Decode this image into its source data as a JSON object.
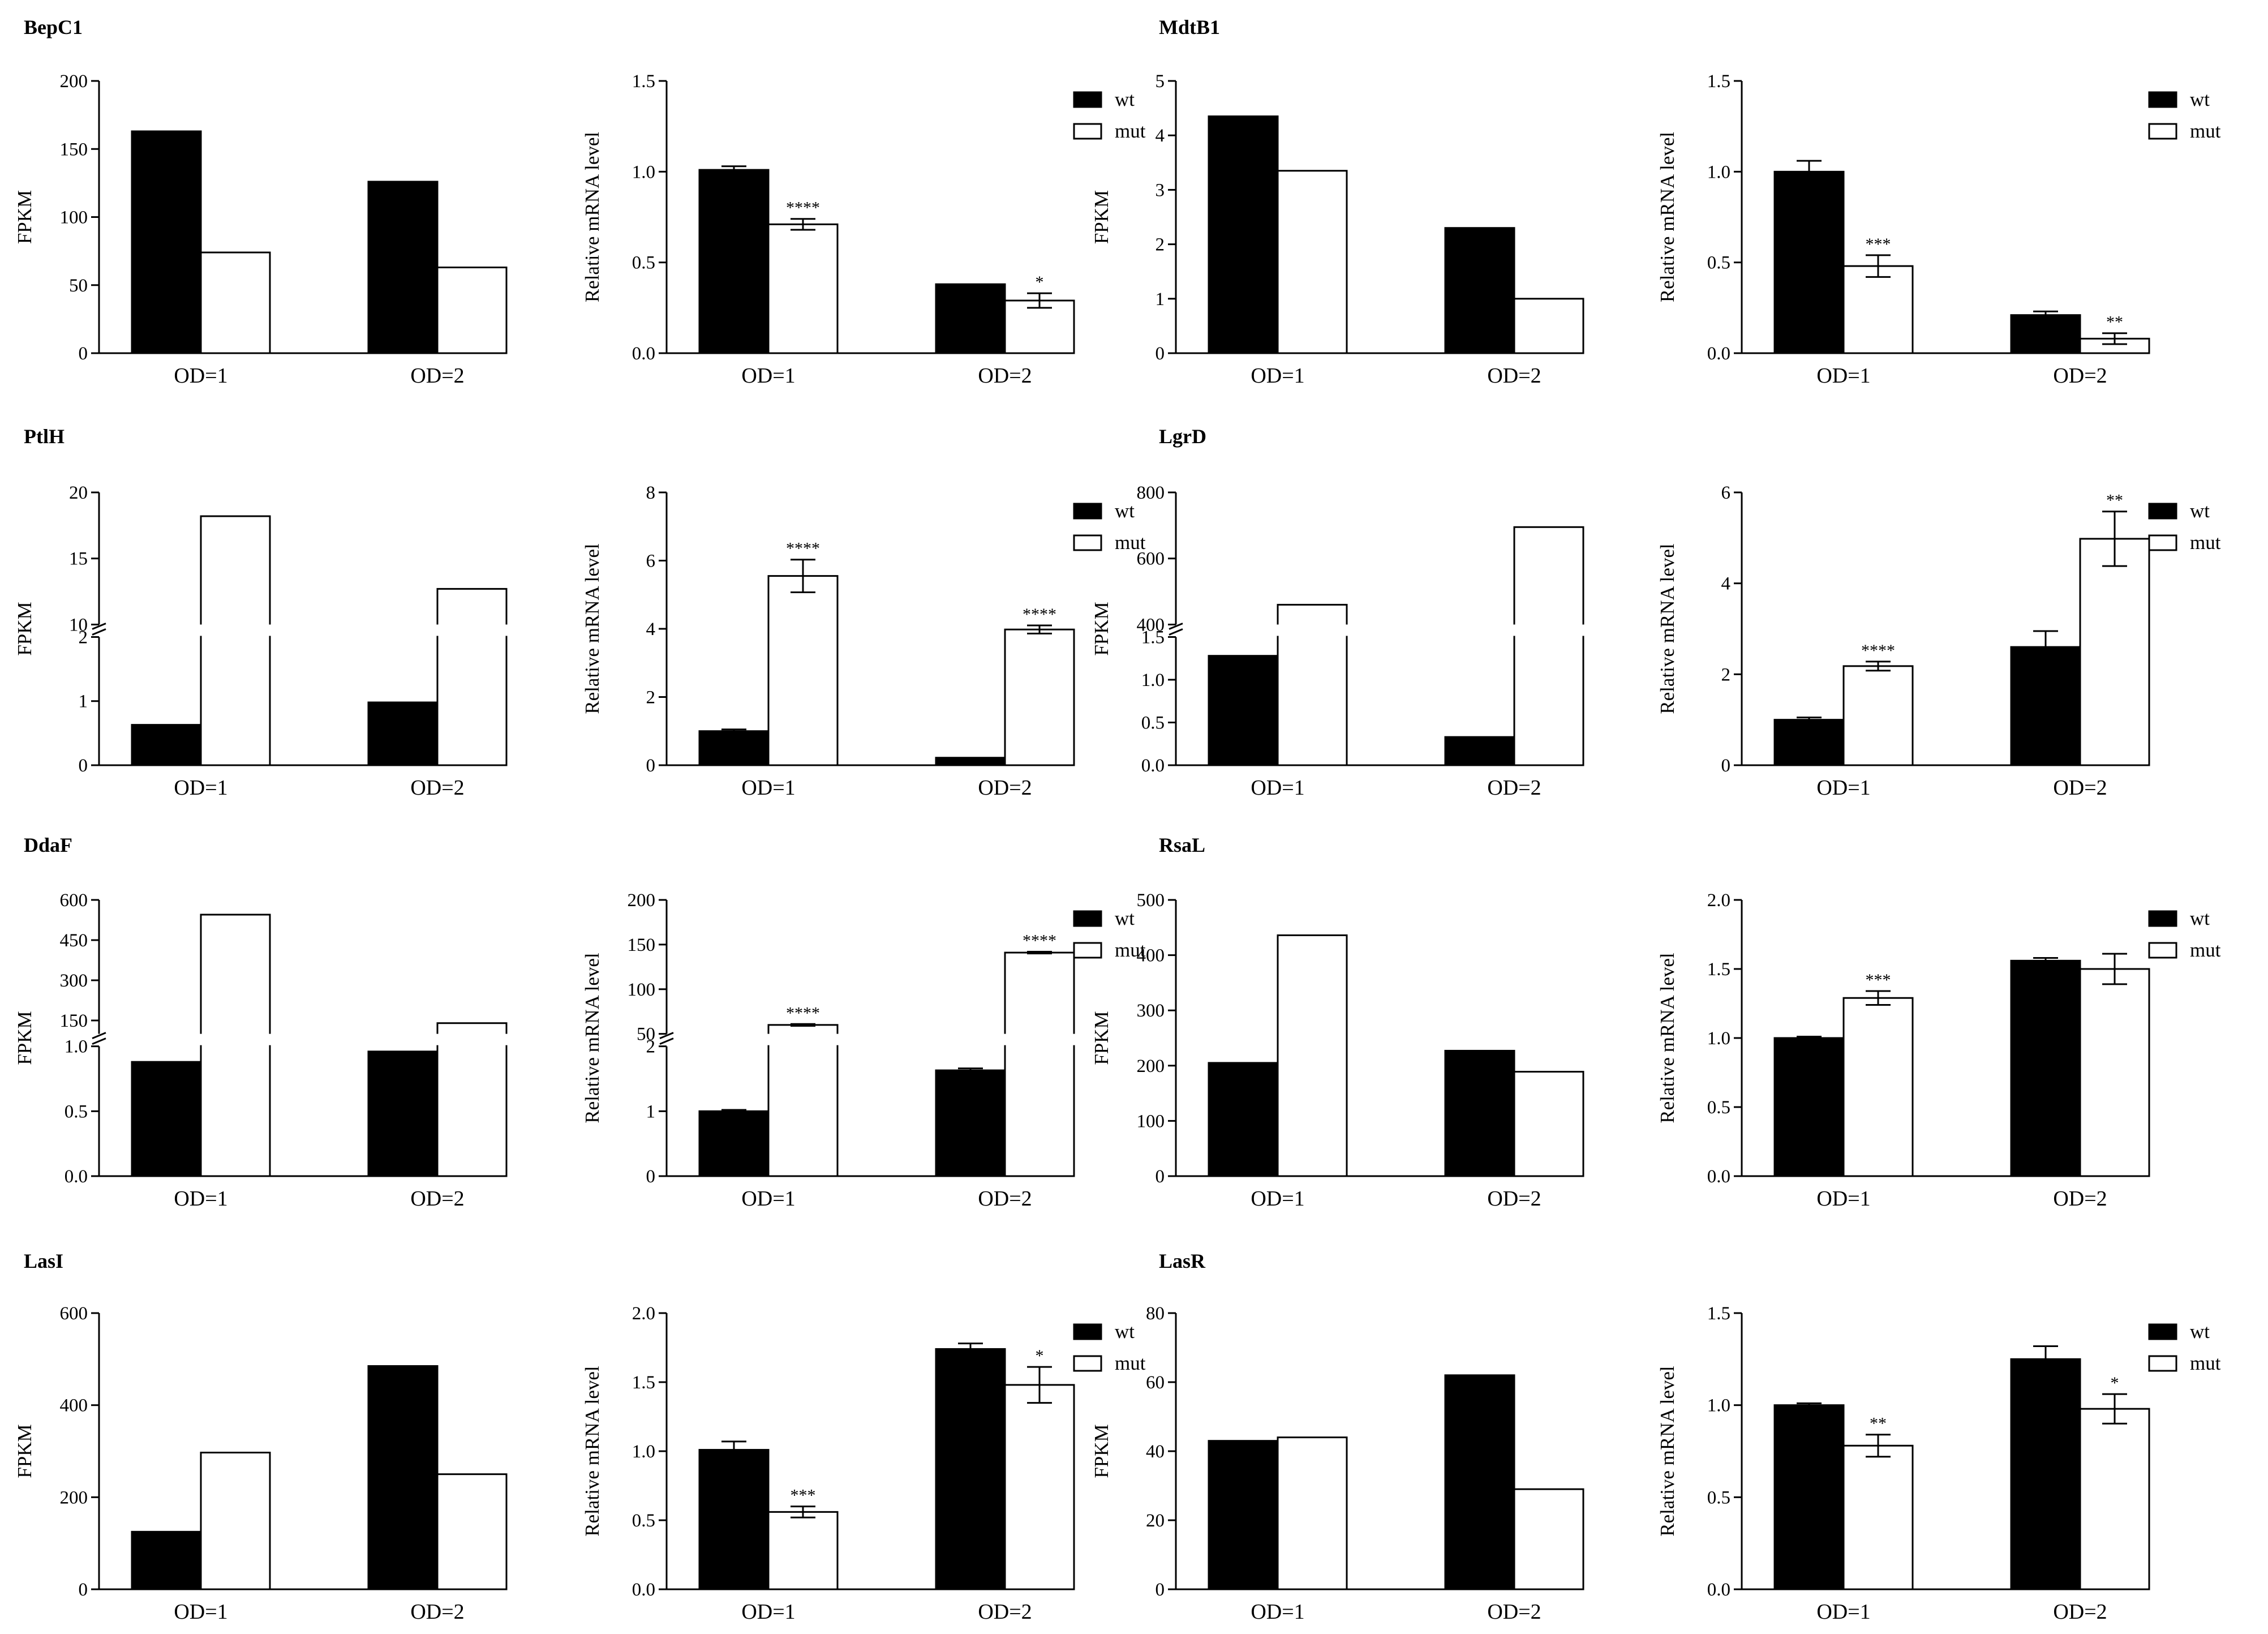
{
  "figure": {
    "type": "grouped bar chart grid"
  },
  "series_styles": {
    "wt": "#000000",
    "mut": "#ffffff"
  },
  "legend_labels": [
    "wt",
    "mut"
  ],
  "chart_data": [
    {
      "type": "bar",
      "gene": "BepC1",
      "kind": "fpkm",
      "ylabel": "FPKM",
      "categories": [
        "OD=1",
        "OD=2"
      ],
      "series": [
        {
          "name": "wt",
          "values": [
            163,
            126
          ]
        },
        {
          "name": "mut",
          "values": [
            74,
            63
          ]
        }
      ],
      "ylim": [
        0,
        200
      ],
      "yticks": [
        "0",
        "50",
        "100",
        "150",
        "200"
      ]
    },
    {
      "type": "bar",
      "gene": "BepC1",
      "kind": "qpcr",
      "ylabel": "Relative mRNA level",
      "categories": [
        "OD=1",
        "OD=2"
      ],
      "series": [
        {
          "name": "wt",
          "values": [
            1.01,
            0.38
          ],
          "errors": [
            0.02,
            0
          ]
        },
        {
          "name": "mut",
          "values": [
            0.71,
            0.29
          ],
          "errors": [
            0.03,
            0.04
          ]
        }
      ],
      "annotations": [
        {
          "series": "mut",
          "category": "OD=1",
          "text": "****"
        },
        {
          "series": "mut",
          "category": "OD=2",
          "text": "*"
        }
      ],
      "ylim": [
        0,
        1.5
      ],
      "yticks": [
        "0.0",
        "0.5",
        "1.0",
        "1.5"
      ],
      "legend": "top-right"
    },
    {
      "type": "bar",
      "gene": "MdtB1",
      "kind": "fpkm",
      "ylabel": "FPKM",
      "categories": [
        "OD=1",
        "OD=2"
      ],
      "series": [
        {
          "name": "wt",
          "values": [
            4.35,
            2.3
          ]
        },
        {
          "name": "mut",
          "values": [
            3.35,
            1.0
          ]
        }
      ],
      "ylim": [
        0,
        5
      ],
      "yticks": [
        "0",
        "1",
        "2",
        "3",
        "4",
        "5"
      ]
    },
    {
      "type": "bar",
      "gene": "MdtB1",
      "kind": "qpcr",
      "ylabel": "Relative mRNA level",
      "categories": [
        "OD=1",
        "OD=2"
      ],
      "series": [
        {
          "name": "wt",
          "values": [
            1.0,
            0.21
          ],
          "errors": [
            0.06,
            0.02
          ]
        },
        {
          "name": "mut",
          "values": [
            0.48,
            0.08
          ],
          "errors": [
            0.06,
            0.03
          ]
        }
      ],
      "annotations": [
        {
          "series": "mut",
          "category": "OD=1",
          "text": "***"
        },
        {
          "series": "mut",
          "category": "OD=2",
          "text": "**"
        }
      ],
      "ylim": [
        0,
        1.5
      ],
      "yticks": [
        "0.0",
        "0.5",
        "1.0",
        "1.5"
      ],
      "legend": "top-right"
    },
    {
      "type": "bar",
      "gene": "PtlH",
      "kind": "fpkm",
      "ylabel": "FPKM",
      "categories": [
        "OD=1",
        "OD=2"
      ],
      "series": [
        {
          "name": "wt",
          "values": [
            0.63,
            0.98
          ]
        },
        {
          "name": "mut",
          "values": [
            18.2,
            12.7
          ]
        }
      ],
      "ylim": [
        0,
        20
      ],
      "yticks": [
        "0",
        "1",
        "2",
        "10",
        "15",
        "20"
      ],
      "axis_break": {
        "lower": [
          0,
          2
        ],
        "upper": [
          10,
          20
        ],
        "lower_ticks": [
          "0",
          "1",
          "2"
        ],
        "upper_ticks": [
          "10",
          "15",
          "20"
        ]
      }
    },
    {
      "type": "bar",
      "gene": "PtlH",
      "kind": "qpcr",
      "ylabel": "Relative mRNA level",
      "categories": [
        "OD=1",
        "OD=2"
      ],
      "series": [
        {
          "name": "wt",
          "values": [
            1.0,
            0.22
          ],
          "errors": [
            0.05,
            0
          ]
        },
        {
          "name": "mut",
          "values": [
            5.55,
            3.98
          ],
          "errors": [
            0.48,
            0.12
          ]
        }
      ],
      "annotations": [
        {
          "series": "mut",
          "category": "OD=1",
          "text": "****"
        },
        {
          "series": "mut",
          "category": "OD=2",
          "text": "****"
        }
      ],
      "ylim": [
        0,
        8
      ],
      "yticks": [
        "0",
        "2",
        "4",
        "6",
        "8"
      ],
      "legend": "top-right"
    },
    {
      "type": "bar",
      "gene": "LgrD",
      "kind": "fpkm",
      "ylabel": "FPKM",
      "categories": [
        "OD=1",
        "OD=2"
      ],
      "series": [
        {
          "name": "wt",
          "values": [
            1.28,
            0.33
          ]
        },
        {
          "name": "mut",
          "values": [
            460,
            695
          ]
        }
      ],
      "ylim": [
        0,
        800
      ],
      "yticks": [
        "0.0",
        "0.5",
        "1.0",
        "1.5",
        "400",
        "600",
        "800"
      ],
      "axis_break": {
        "lower": [
          0,
          1.5
        ],
        "upper": [
          400,
          800
        ],
        "lower_ticks": [
          "0.0",
          "0.5",
          "1.0",
          "1.5"
        ],
        "upper_ticks": [
          "400",
          "600",
          "800"
        ]
      }
    },
    {
      "type": "bar",
      "gene": "LgrD",
      "kind": "qpcr",
      "ylabel": "Relative mRNA level",
      "categories": [
        "OD=1",
        "OD=2"
      ],
      "series": [
        {
          "name": "wt",
          "values": [
            1.0,
            2.6
          ],
          "errors": [
            0.05,
            0.35
          ]
        },
        {
          "name": "mut",
          "values": [
            2.18,
            4.98
          ],
          "errors": [
            0.1,
            0.6
          ]
        }
      ],
      "annotations": [
        {
          "series": "mut",
          "category": "OD=1",
          "text": "****"
        },
        {
          "series": "mut",
          "category": "OD=2",
          "text": "**"
        }
      ],
      "ylim": [
        0,
        6
      ],
      "yticks": [
        "0",
        "2",
        "4",
        "6"
      ],
      "legend": "top-right"
    },
    {
      "type": "bar",
      "gene": "DdaF",
      "kind": "fpkm",
      "ylabel": "FPKM",
      "categories": [
        "OD=1",
        "OD=2"
      ],
      "series": [
        {
          "name": "wt",
          "values": [
            0.88,
            0.96
          ]
        },
        {
          "name": "mut",
          "values": [
            545,
            140
          ]
        }
      ],
      "ylim": [
        0,
        600
      ],
      "yticks": [
        "0.0",
        "0.5",
        "1.0",
        "150",
        "300",
        "450",
        "600"
      ],
      "axis_break": {
        "lower": [
          0,
          1.0
        ],
        "upper": [
          100,
          600
        ],
        "lower_ticks": [
          "0.0",
          "0.5",
          "1.0"
        ],
        "upper_ticks": [
          "150",
          "300",
          "450",
          "600"
        ]
      }
    },
    {
      "type": "bar",
      "gene": "DdaF",
      "kind": "qpcr",
      "ylabel": "Relative mRNA level",
      "categories": [
        "OD=1",
        "OD=2"
      ],
      "series": [
        {
          "name": "wt",
          "values": [
            1.0,
            1.63
          ],
          "errors": [
            0.02,
            0.03
          ]
        },
        {
          "name": "mut",
          "values": [
            60,
            141
          ],
          "errors": [
            1,
            1
          ]
        }
      ],
      "annotations": [
        {
          "series": "mut",
          "category": "OD=1",
          "text": "****"
        },
        {
          "series": "mut",
          "category": "OD=2",
          "text": "****"
        }
      ],
      "ylim": [
        0,
        200
      ],
      "yticks": [
        "0",
        "1",
        "2",
        "50",
        "100",
        "150",
        "200"
      ],
      "legend": "top-right",
      "axis_break": {
        "lower": [
          0,
          2
        ],
        "upper": [
          50,
          200
        ],
        "lower_ticks": [
          "0",
          "1",
          "2"
        ],
        "upper_ticks": [
          "50",
          "100",
          "150",
          "200"
        ]
      }
    },
    {
      "type": "bar",
      "gene": "RsaL",
      "kind": "fpkm",
      "ylabel": "FPKM",
      "categories": [
        "OD=1",
        "OD=2"
      ],
      "series": [
        {
          "name": "wt",
          "values": [
            205,
            227
          ]
        },
        {
          "name": "mut",
          "values": [
            436,
            189
          ]
        }
      ],
      "ylim": [
        0,
        500
      ],
      "yticks": [
        "0",
        "100",
        "200",
        "300",
        "400",
        "500"
      ]
    },
    {
      "type": "bar",
      "gene": "RsaL",
      "kind": "qpcr",
      "ylabel": "Relative mRNA level",
      "categories": [
        "OD=1",
        "OD=2"
      ],
      "series": [
        {
          "name": "wt",
          "values": [
            1.0,
            1.56
          ],
          "errors": [
            0.01,
            0.02
          ]
        },
        {
          "name": "mut",
          "values": [
            1.29,
            1.5
          ],
          "errors": [
            0.05,
            0.11
          ]
        }
      ],
      "annotations": [
        {
          "series": "mut",
          "category": "OD=1",
          "text": "***"
        }
      ],
      "ylim": [
        0,
        2.0
      ],
      "yticks": [
        "0.0",
        "0.5",
        "1.0",
        "1.5",
        "2.0"
      ],
      "legend": "top-right"
    },
    {
      "type": "bar",
      "gene": "LasI",
      "kind": "fpkm",
      "ylabel": "FPKM",
      "categories": [
        "OD=1",
        "OD=2"
      ],
      "series": [
        {
          "name": "wt",
          "values": [
            125,
            485
          ]
        },
        {
          "name": "mut",
          "values": [
            297,
            250
          ]
        }
      ],
      "ylim": [
        0,
        600
      ],
      "yticks": [
        "0",
        "200",
        "400",
        "600"
      ]
    },
    {
      "type": "bar",
      "gene": "LasI",
      "kind": "qpcr",
      "ylabel": "Relative mRNA level",
      "categories": [
        "OD=1",
        "OD=2"
      ],
      "series": [
        {
          "name": "wt",
          "values": [
            1.01,
            1.74
          ],
          "errors": [
            0.06,
            0.04
          ]
        },
        {
          "name": "mut",
          "values": [
            0.56,
            1.48
          ],
          "errors": [
            0.04,
            0.13
          ]
        }
      ],
      "annotations": [
        {
          "series": "mut",
          "category": "OD=1",
          "text": "***"
        },
        {
          "series": "mut",
          "category": "OD=2",
          "text": "*"
        }
      ],
      "ylim": [
        0,
        2.0
      ],
      "yticks": [
        "0.0",
        "0.5",
        "1.0",
        "1.5",
        "2.0"
      ],
      "legend": "top-right"
    },
    {
      "type": "bar",
      "gene": "LasR",
      "kind": "fpkm",
      "ylabel": "FPKM",
      "categories": [
        "OD=1",
        "OD=2"
      ],
      "series": [
        {
          "name": "wt",
          "values": [
            43,
            62
          ]
        },
        {
          "name": "mut",
          "values": [
            44,
            29
          ]
        }
      ],
      "ylim": [
        0,
        80
      ],
      "yticks": [
        "0",
        "20",
        "40",
        "60",
        "80"
      ]
    },
    {
      "type": "bar",
      "gene": "LasR",
      "kind": "qpcr",
      "ylabel": "Relative mRNA level",
      "categories": [
        "OD=1",
        "OD=2"
      ],
      "series": [
        {
          "name": "wt",
          "values": [
            1.0,
            1.25
          ],
          "errors": [
            0.01,
            0.07
          ]
        },
        {
          "name": "mut",
          "values": [
            0.78,
            0.98
          ],
          "errors": [
            0.06,
            0.08
          ]
        }
      ],
      "annotations": [
        {
          "series": "mut",
          "category": "OD=1",
          "text": "**"
        },
        {
          "series": "mut",
          "category": "OD=2",
          "text": "*"
        }
      ],
      "ylim": [
        0,
        1.5
      ],
      "yticks": [
        "0.0",
        "0.5",
        "1.0",
        "1.5"
      ],
      "legend": "top-right"
    }
  ]
}
